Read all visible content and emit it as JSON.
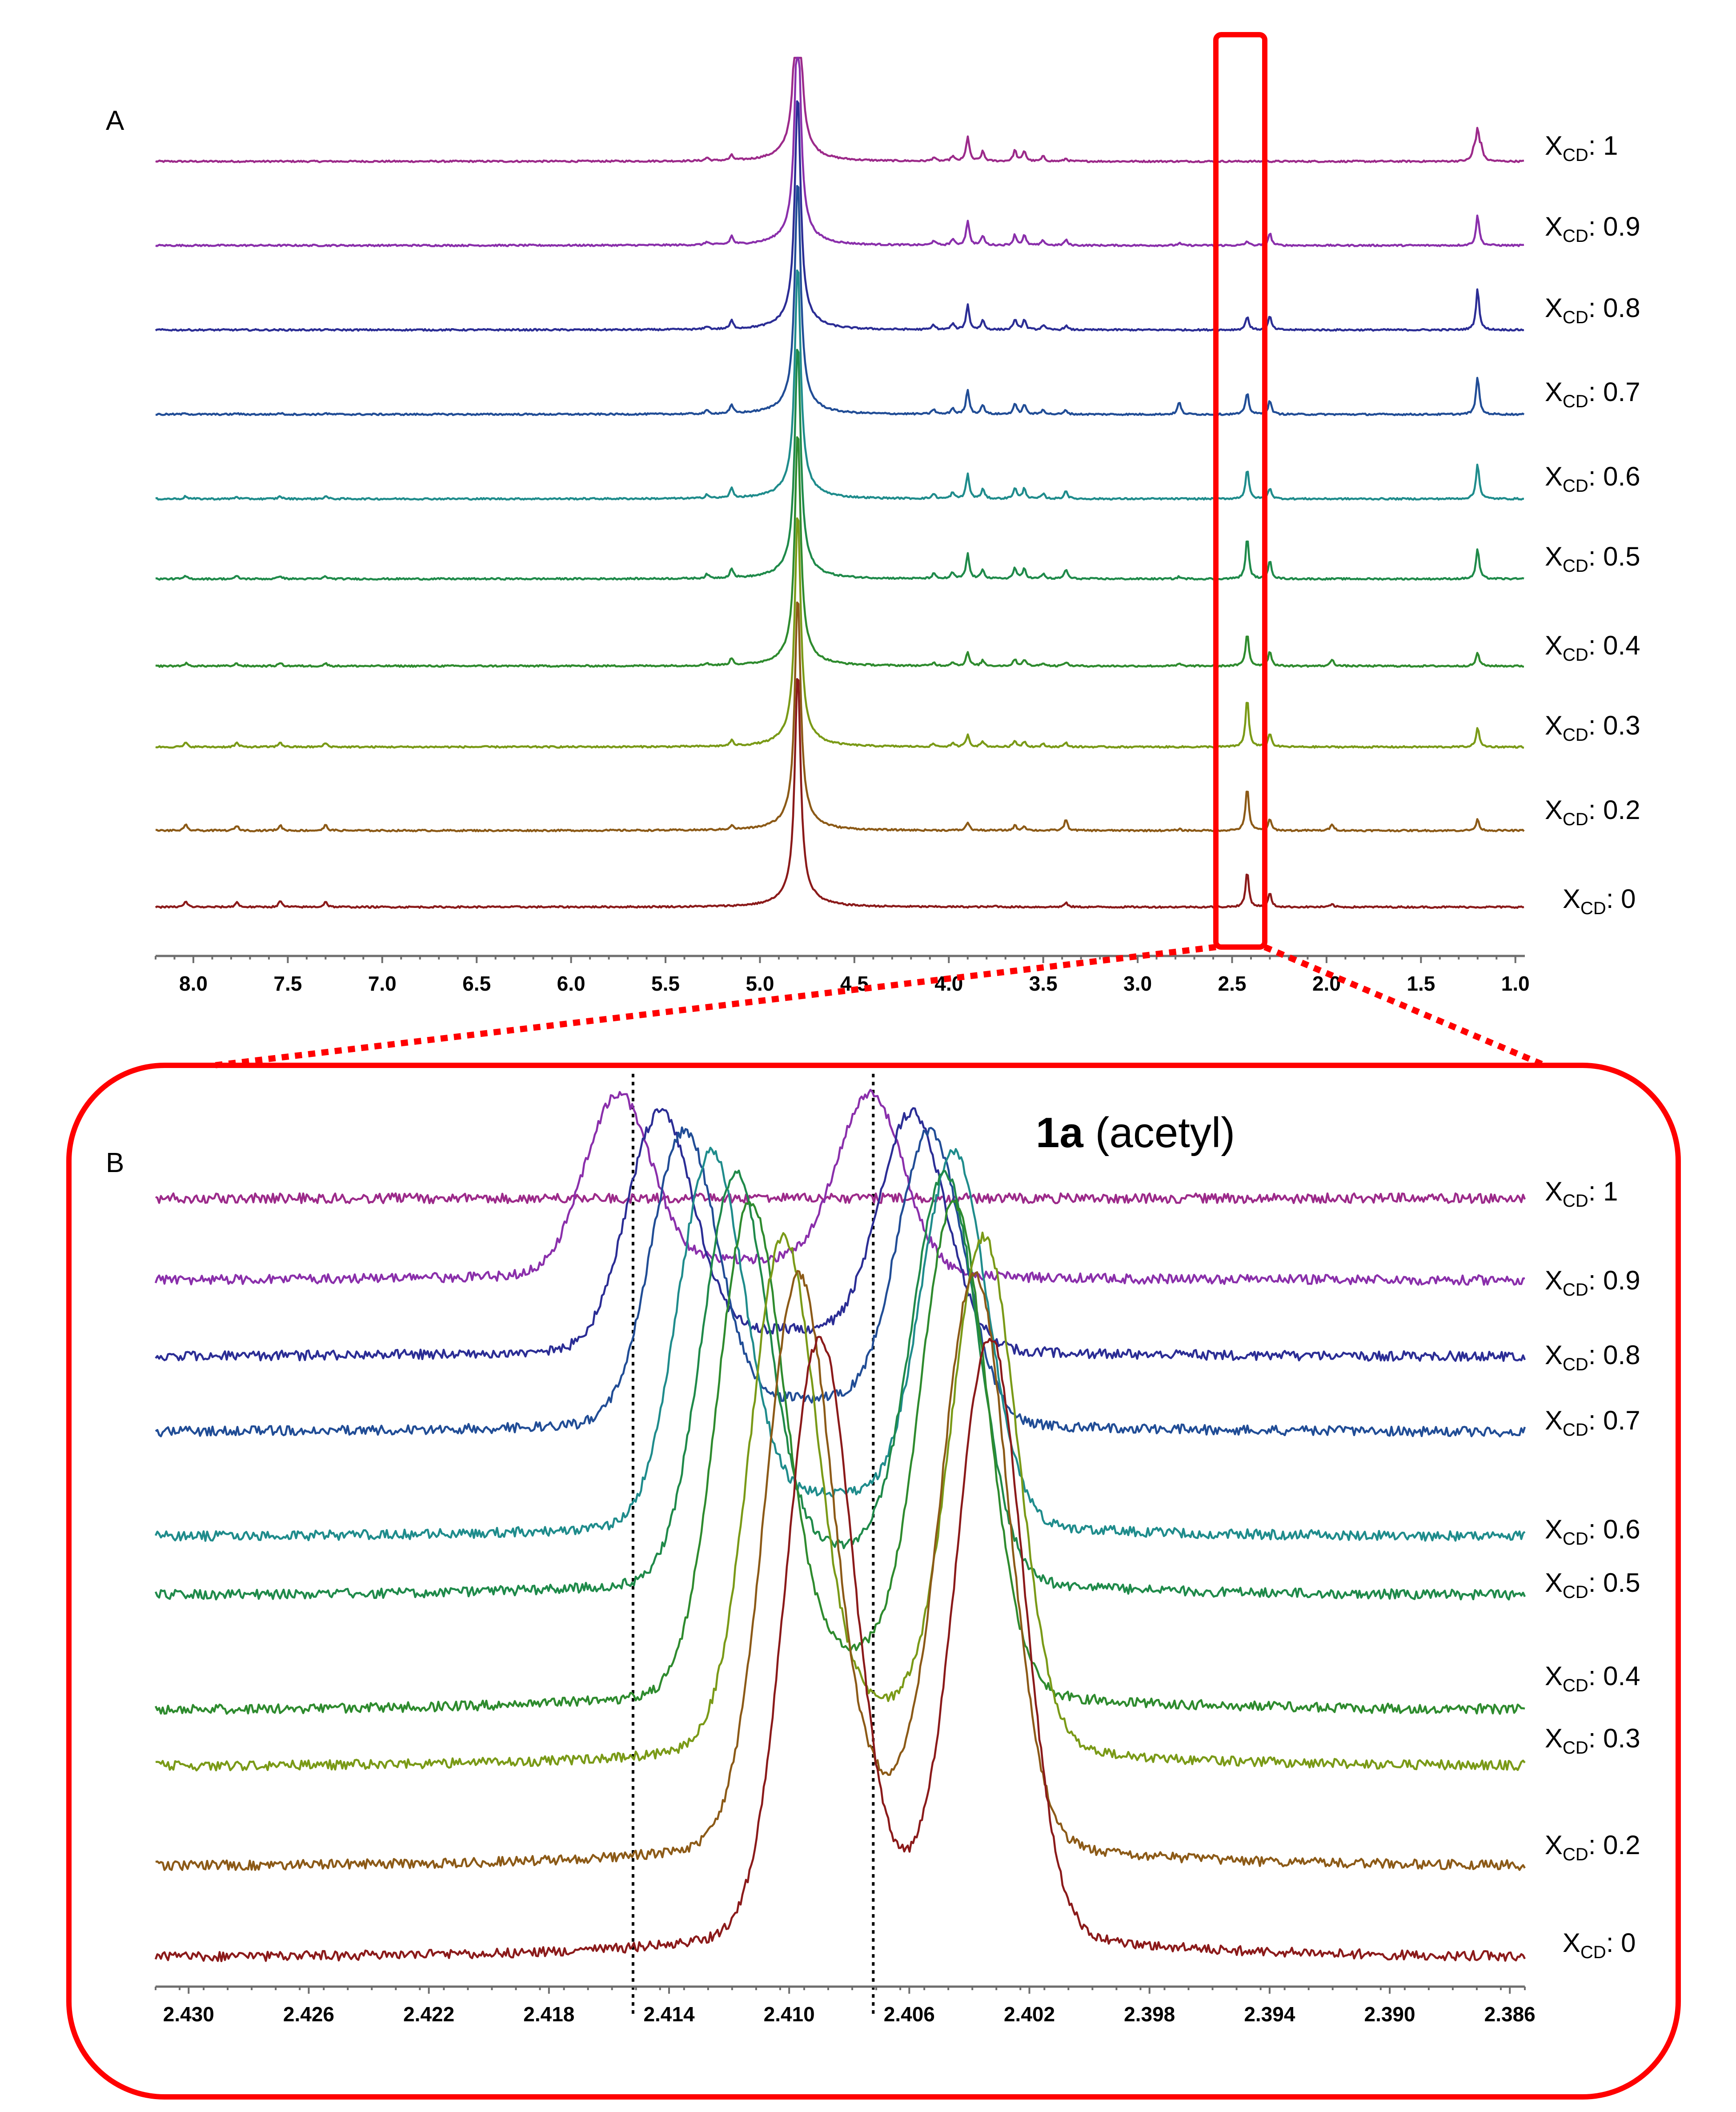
{
  "figure": {
    "panel_a_letter": "A",
    "panel_b_letter": "B",
    "annotation_bold": "1a",
    "annotation_rest": " (acetyl)",
    "label_prefix": "X",
    "label_subscript": "CD",
    "highlight_color": "#ff0000"
  },
  "chart_data": [
    {
      "panel": "A",
      "type": "line",
      "title": "",
      "xlabel": "",
      "ylabel": "",
      "x_reversed": true,
      "xlim": [
        8.2,
        0.95
      ],
      "ticks": [
        8.0,
        7.5,
        7.0,
        6.5,
        6.0,
        5.5,
        5.0,
        4.5,
        4.0,
        3.5,
        3.0,
        2.5,
        2.0,
        1.5,
        1.0
      ],
      "tick_labels": [
        "8.0",
        "7.5",
        "7.0",
        "6.5",
        "6.0",
        "5.5",
        "5.0",
        "4.5",
        "4.0",
        "3.5",
        "3.0",
        "2.5",
        "2.0",
        "1.5",
        "1.0"
      ],
      "highlighted_region": [
        2.53,
        2.26
      ],
      "series": [
        {
          "name": "X_CD: 1",
          "value": "1",
          "color": "#9c2a8a",
          "peaks": [
            [
              7.9,
              0
            ],
            [
              5.28,
              0.12
            ],
            [
              5.15,
              0.18
            ],
            [
              4.8,
              8
            ],
            [
              4.08,
              0.14
            ],
            [
              3.98,
              0.18
            ],
            [
              3.9,
              0.9
            ],
            [
              3.82,
              0.35
            ],
            [
              3.65,
              0.4
            ],
            [
              3.6,
              0.38
            ],
            [
              3.5,
              0.18
            ],
            [
              3.38,
              0.1
            ],
            [
              1.22,
              0.35
            ],
            [
              1.2,
              1.1
            ],
            [
              1.18,
              0.4
            ]
          ]
        },
        {
          "name": "X_CD: 0.9",
          "value": "0.9",
          "color": "#8a2fab",
          "peaks": [
            [
              5.28,
              0.12
            ],
            [
              5.15,
              0.3
            ],
            [
              4.8,
              8
            ],
            [
              4.08,
              0.18
            ],
            [
              3.98,
              0.22
            ],
            [
              3.9,
              0.9
            ],
            [
              3.82,
              0.35
            ],
            [
              3.65,
              0.38
            ],
            [
              3.6,
              0.36
            ],
            [
              3.5,
              0.18
            ],
            [
              3.38,
              0.2
            ],
            [
              2.78,
              0.08
            ],
            [
              2.42,
              0.15
            ],
            [
              2.3,
              0.45
            ],
            [
              1.2,
              1.1
            ]
          ]
        },
        {
          "name": "X_CD: 0.8",
          "value": "0.8",
          "color": "#2b2d95",
          "peaks": [
            [
              5.28,
              0.12
            ],
            [
              5.15,
              0.3
            ],
            [
              4.8,
              8
            ],
            [
              4.08,
              0.18
            ],
            [
              3.98,
              0.22
            ],
            [
              3.9,
              0.9
            ],
            [
              3.82,
              0.35
            ],
            [
              3.65,
              0.38
            ],
            [
              3.6,
              0.36
            ],
            [
              3.5,
              0.18
            ],
            [
              3.38,
              0.15
            ],
            [
              2.42,
              0.5
            ],
            [
              2.3,
              0.5
            ],
            [
              1.2,
              1.5
            ]
          ]
        },
        {
          "name": "X_CD: 0.7",
          "value": "0.7",
          "color": "#214d96",
          "peaks": [
            [
              8.04,
              0.05
            ],
            [
              7.77,
              0.04
            ],
            [
              7.54,
              0.05
            ],
            [
              7.3,
              0.04
            ],
            [
              5.28,
              0.12
            ],
            [
              5.15,
              0.3
            ],
            [
              4.8,
              8
            ],
            [
              4.08,
              0.18
            ],
            [
              3.98,
              0.22
            ],
            [
              3.9,
              0.9
            ],
            [
              3.82,
              0.35
            ],
            [
              3.65,
              0.38
            ],
            [
              3.6,
              0.36
            ],
            [
              3.5,
              0.18
            ],
            [
              3.38,
              0.15
            ],
            [
              2.78,
              0.45
            ],
            [
              2.42,
              0.8
            ],
            [
              2.3,
              0.5
            ],
            [
              1.2,
              1.4
            ]
          ]
        },
        {
          "name": "X_CD: 0.6",
          "value": "0.6",
          "color": "#1f8c8c",
          "peaks": [
            [
              8.04,
              0.1
            ],
            [
              7.77,
              0.08
            ],
            [
              7.54,
              0.1
            ],
            [
              7.3,
              0.1
            ],
            [
              5.28,
              0.15
            ],
            [
              5.15,
              0.35
            ],
            [
              4.8,
              8
            ],
            [
              4.08,
              0.18
            ],
            [
              3.98,
              0.22
            ],
            [
              3.9,
              0.9
            ],
            [
              3.82,
              0.35
            ],
            [
              3.65,
              0.4
            ],
            [
              3.6,
              0.38
            ],
            [
              3.5,
              0.18
            ],
            [
              3.38,
              0.3
            ],
            [
              2.42,
              1.1
            ],
            [
              2.3,
              0.4
            ],
            [
              1.2,
              1.3
            ]
          ]
        },
        {
          "name": "X_CD: 0.5",
          "value": "0.5",
          "color": "#1f8a4a",
          "peaks": [
            [
              8.04,
              0.1
            ],
            [
              7.77,
              0.1
            ],
            [
              7.54,
              0.12
            ],
            [
              7.3,
              0.1
            ],
            [
              5.28,
              0.15
            ],
            [
              5.15,
              0.35
            ],
            [
              4.8,
              8
            ],
            [
              4.08,
              0.18
            ],
            [
              3.98,
              0.22
            ],
            [
              3.9,
              0.9
            ],
            [
              3.82,
              0.35
            ],
            [
              3.65,
              0.4
            ],
            [
              3.6,
              0.38
            ],
            [
              3.5,
              0.18
            ],
            [
              3.38,
              0.35
            ],
            [
              2.78,
              0.08
            ],
            [
              2.42,
              1.5
            ],
            [
              2.3,
              0.7
            ],
            [
              1.2,
              1.1
            ]
          ]
        },
        {
          "name": "X_CD: 0.4",
          "value": "0.4",
          "color": "#2e8b2e",
          "peaks": [
            [
              8.04,
              0.1
            ],
            [
              7.77,
              0.1
            ],
            [
              7.54,
              0.12
            ],
            [
              7.3,
              0.1
            ],
            [
              5.28,
              0.1
            ],
            [
              5.15,
              0.25
            ],
            [
              4.8,
              8
            ],
            [
              4.08,
              0.12
            ],
            [
              3.98,
              0.15
            ],
            [
              3.9,
              0.5
            ],
            [
              3.82,
              0.2
            ],
            [
              3.65,
              0.25
            ],
            [
              3.6,
              0.24
            ],
            [
              3.5,
              0.12
            ],
            [
              3.38,
              0.15
            ],
            [
              2.78,
              0.08
            ],
            [
              2.42,
              1.2
            ],
            [
              2.3,
              0.55
            ],
            [
              1.97,
              0.25
            ],
            [
              1.2,
              0.5
            ]
          ]
        },
        {
          "name": "X_CD: 0.3",
          "value": "0.3",
          "color": "#7a9a17",
          "peaks": [
            [
              8.04,
              0.15
            ],
            [
              7.77,
              0.15
            ],
            [
              7.54,
              0.18
            ],
            [
              7.3,
              0.15
            ],
            [
              5.15,
              0.2
            ],
            [
              4.8,
              8
            ],
            [
              4.08,
              0.1
            ],
            [
              3.98,
              0.12
            ],
            [
              3.9,
              0.45
            ],
            [
              3.82,
              0.2
            ],
            [
              3.65,
              0.22
            ],
            [
              3.6,
              0.2
            ],
            [
              3.5,
              0.1
            ],
            [
              3.38,
              0.15
            ],
            [
              2.42,
              1.8
            ],
            [
              2.3,
              0.5
            ],
            [
              1.2,
              0.7
            ]
          ]
        },
        {
          "name": "X_CD: 0.2",
          "value": "0.2",
          "color": "#8c5a17",
          "peaks": [
            [
              8.04,
              0.2
            ],
            [
              7.77,
              0.18
            ],
            [
              7.54,
              0.2
            ],
            [
              7.3,
              0.2
            ],
            [
              5.15,
              0.15
            ],
            [
              4.8,
              8
            ],
            [
              3.9,
              0.3
            ],
            [
              3.65,
              0.18
            ],
            [
              3.6,
              0.16
            ],
            [
              3.38,
              0.4
            ],
            [
              2.78,
              0.05
            ],
            [
              2.42,
              1.6
            ],
            [
              2.3,
              0.4
            ],
            [
              1.97,
              0.25
            ],
            [
              1.2,
              0.4
            ]
          ]
        },
        {
          "name": "X_CD: 0",
          "value": "0",
          "color": "#8b1a1a",
          "peaks": [
            [
              8.04,
              0.2
            ],
            [
              7.77,
              0.18
            ],
            [
              7.54,
              0.22
            ],
            [
              7.3,
              0.2
            ],
            [
              4.8,
              8
            ],
            [
              3.75,
              0.04
            ],
            [
              3.38,
              0.15
            ],
            [
              2.42,
              1.3
            ],
            [
              2.3,
              0.5
            ],
            [
              1.97,
              0.1
            ]
          ]
        }
      ]
    },
    {
      "panel": "B",
      "type": "line",
      "title": "1a (acetyl)",
      "xlabel": "",
      "ylabel": "",
      "x_reversed": true,
      "xlim": [
        2.4311,
        2.3855
      ],
      "ticks": [
        2.43,
        2.426,
        2.422,
        2.418,
        2.414,
        2.41,
        2.406,
        2.402,
        2.398,
        2.394,
        2.39,
        2.386
      ],
      "tick_labels": [
        "2.430",
        "2.426",
        "2.422",
        "2.418",
        "2.414",
        "2.410",
        "2.406",
        "2.402",
        "2.398",
        "2.394",
        "2.390",
        "2.386"
      ],
      "reference_lines": [
        2.4152,
        2.4072
      ],
      "series": [
        {
          "name": "X_CD: 1",
          "value": "1",
          "color": "#9c2a8a",
          "doublet": null
        },
        {
          "name": "X_CD: 0.9",
          "value": "0.9",
          "color": "#8a2fab",
          "doublet": [
            2.4157,
            2.4073
          ]
        },
        {
          "name": "X_CD: 0.8",
          "value": "0.8",
          "color": "#2b2d95",
          "doublet": [
            2.4143,
            2.4059
          ]
        },
        {
          "name": "X_CD: 0.7",
          "value": "0.7",
          "color": "#214d96",
          "doublet": [
            2.4135,
            2.4053
          ]
        },
        {
          "name": "X_CD: 0.6",
          "value": "0.6",
          "color": "#1f8c8c",
          "doublet": [
            2.4126,
            2.4045
          ]
        },
        {
          "name": "X_CD: 0.5",
          "value": "0.5",
          "color": "#1f8a4a",
          "doublet": [
            2.4118,
            2.4048
          ]
        },
        {
          "name": "X_CD: 0.4",
          "value": "0.4",
          "color": "#2e8b2e",
          "doublet": [
            2.4113,
            2.4045
          ]
        },
        {
          "name": "X_CD: 0.3",
          "value": "0.3",
          "color": "#7a9a17",
          "doublet": [
            2.4102,
            2.4035
          ]
        },
        {
          "name": "X_CD: 0.2",
          "value": "0.2",
          "color": "#8c5a17",
          "doublet": [
            2.4097,
            2.4038
          ]
        },
        {
          "name": "X_CD: 0",
          "value": "0",
          "color": "#8b1a1a",
          "doublet": [
            2.409,
            2.4033
          ]
        }
      ]
    }
  ]
}
